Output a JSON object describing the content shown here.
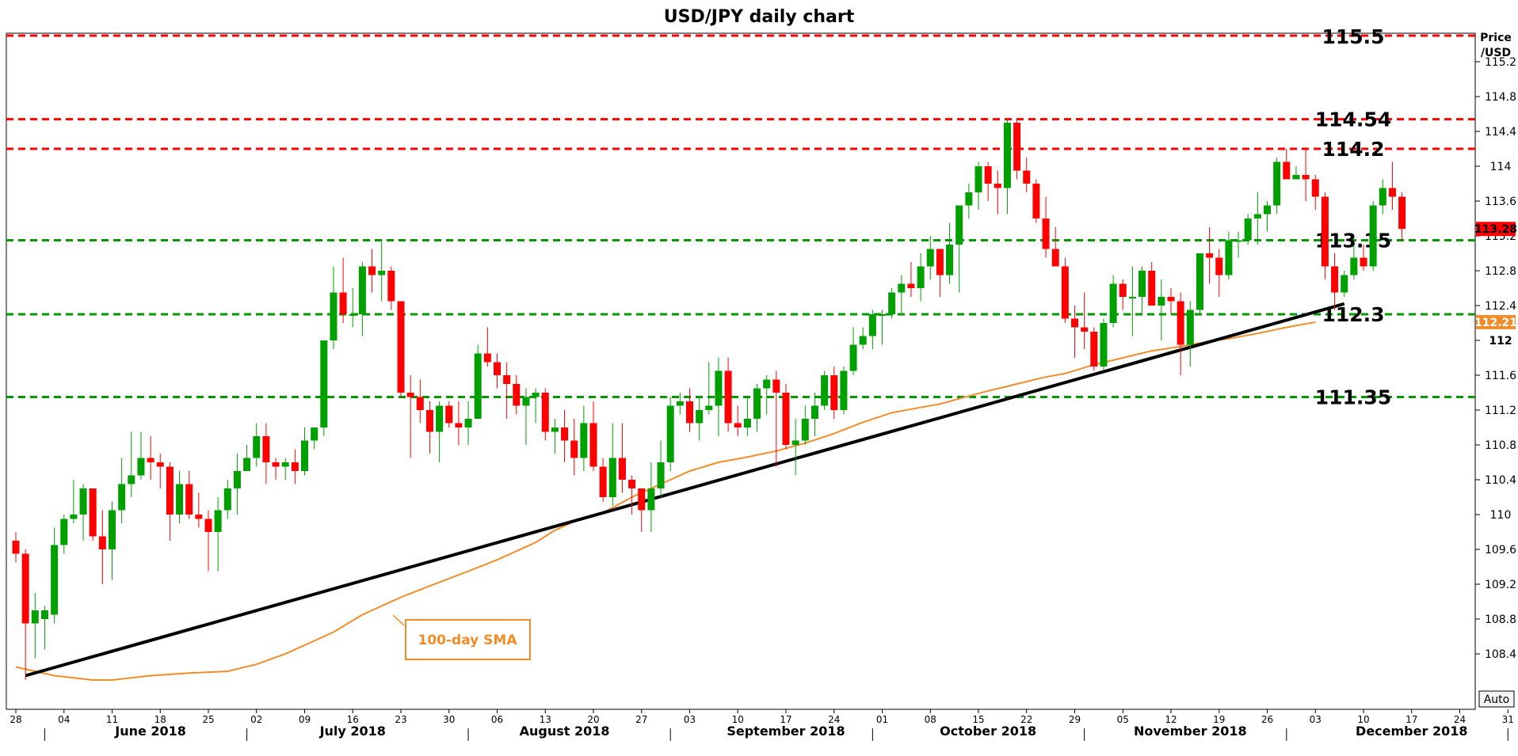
{
  "chart_data": {
    "type": "candlestick",
    "title": "USD/JPY daily chart",
    "ylabel": "Price /USD",
    "ylabel_lines": [
      "Price",
      "/USD"
    ],
    "ylim": [
      108.0,
      115.5
    ],
    "yticks": [
      "115.2",
      "114.8",
      "114.4",
      "114",
      "113.6",
      "113.2",
      "112.8",
      "112.4",
      "112",
      "111.6",
      "111.2",
      "110.8",
      "110.4",
      "110",
      "109.6",
      "109.2",
      "108.8",
      "108.4"
    ],
    "ytick_values": [
      115.2,
      114.8,
      114.4,
      114.0,
      113.6,
      113.2,
      112.8,
      112.4,
      112.0,
      111.6,
      111.2,
      110.8,
      110.4,
      110.0,
      109.6,
      109.2,
      108.8,
      108.4
    ],
    "ytick_bold": "112",
    "auto_button": "Auto",
    "x_day_ticks": [
      {
        "label": "28",
        "d": 0
      },
      {
        "label": "04",
        "d": 5
      },
      {
        "label": "11",
        "d": 10
      },
      {
        "label": "18",
        "d": 15
      },
      {
        "label": "25",
        "d": 20
      },
      {
        "label": "02",
        "d": 25
      },
      {
        "label": "09",
        "d": 30
      },
      {
        "label": "16",
        "d": 35
      },
      {
        "label": "23",
        "d": 40
      },
      {
        "label": "30",
        "d": 45
      },
      {
        "label": "06",
        "d": 50
      },
      {
        "label": "13",
        "d": 55
      },
      {
        "label": "20",
        "d": 60
      },
      {
        "label": "27",
        "d": 65
      },
      {
        "label": "03",
        "d": 70
      },
      {
        "label": "10",
        "d": 75
      },
      {
        "label": "17",
        "d": 80
      },
      {
        "label": "24",
        "d": 85
      },
      {
        "label": "01",
        "d": 90
      },
      {
        "label": "08",
        "d": 95
      },
      {
        "label": "15",
        "d": 100
      },
      {
        "label": "22",
        "d": 105
      },
      {
        "label": "29",
        "d": 110
      },
      {
        "label": "05",
        "d": 115
      },
      {
        "label": "12",
        "d": 120
      },
      {
        "label": "19",
        "d": 125
      },
      {
        "label": "26",
        "d": 130
      },
      {
        "label": "03",
        "d": 135
      },
      {
        "label": "10",
        "d": 140
      },
      {
        "label": "17",
        "d": 145
      },
      {
        "label": "24",
        "d": 150
      },
      {
        "label": "31",
        "d": 155
      }
    ],
    "months": [
      {
        "label": "June 2018",
        "d": 14
      },
      {
        "label": "July 2018",
        "d": 35
      },
      {
        "label": "August 2018",
        "d": 57
      },
      {
        "label": "September 2018",
        "d": 80
      },
      {
        "label": "October 2018",
        "d": 101
      },
      {
        "label": "November 2018",
        "d": 122
      },
      {
        "label": "December 2018",
        "d": 145
      }
    ],
    "month_separators": [
      3,
      24,
      47,
      68,
      89,
      111,
      132,
      155
    ],
    "horizontal_levels": [
      {
        "value": 115.5,
        "label": "115.5",
        "color": "#ff0000"
      },
      {
        "value": 114.54,
        "label": "114.54",
        "color": "#ff0000"
      },
      {
        "value": 114.2,
        "label": "114.2",
        "color": "#ff0000"
      },
      {
        "value": 113.15,
        "label": "113.15",
        "color": "#009900"
      },
      {
        "value": 112.3,
        "label": "112.3",
        "color": "#009900"
      },
      {
        "value": 111.35,
        "label": "111.35",
        "color": "#009900"
      }
    ],
    "trendline": {
      "from": {
        "d": 1,
        "value": 108.15
      },
      "to": {
        "d": 138,
        "value": 112.42
      },
      "color": "#000000"
    },
    "sma": {
      "name": "100-day SMA",
      "color": "#f28c28",
      "points": [
        [
          0,
          108.25
        ],
        [
          4,
          108.15
        ],
        [
          8,
          108.1
        ],
        [
          10,
          108.1
        ],
        [
          14,
          108.15
        ],
        [
          18,
          108.18
        ],
        [
          22,
          108.2
        ],
        [
          25,
          108.28
        ],
        [
          28,
          108.4
        ],
        [
          30,
          108.5
        ],
        [
          33,
          108.65
        ],
        [
          36,
          108.85
        ],
        [
          40,
          109.05
        ],
        [
          43,
          109.18
        ],
        [
          47,
          109.35
        ],
        [
          50,
          109.48
        ],
        [
          54,
          109.68
        ],
        [
          56,
          109.82
        ],
        [
          58,
          109.92
        ],
        [
          61,
          110.02
        ],
        [
          64,
          110.2
        ],
        [
          67,
          110.35
        ],
        [
          70,
          110.5
        ],
        [
          73,
          110.6
        ],
        [
          76,
          110.66
        ],
        [
          79,
          110.73
        ],
        [
          82,
          110.82
        ],
        [
          85,
          110.93
        ],
        [
          88,
          111.06
        ],
        [
          91,
          111.17
        ],
        [
          94,
          111.23
        ],
        [
          96,
          111.27
        ],
        [
          98,
          111.33
        ],
        [
          101,
          111.42
        ],
        [
          104,
          111.5
        ],
        [
          107,
          111.58
        ],
        [
          109,
          111.62
        ],
        [
          112,
          111.72
        ],
        [
          115,
          111.8
        ],
        [
          118,
          111.88
        ],
        [
          121,
          111.93
        ],
        [
          123,
          111.97
        ],
        [
          126,
          112.02
        ],
        [
          129,
          112.08
        ],
        [
          132,
          112.15
        ],
        [
          135,
          112.21
        ]
      ]
    },
    "current_price_tags": [
      {
        "label": "113.28",
        "value": 113.28,
        "bg": "#ff0000",
        "fg": "#000000"
      },
      {
        "label": "112.21",
        "value": 112.21,
        "bg": "#f28c28",
        "fg": "#ffffff"
      }
    ],
    "candles": [
      [
        0,
        109.7,
        109.8,
        109.45,
        109.55
      ],
      [
        1,
        109.55,
        109.6,
        108.1,
        108.75
      ],
      [
        2,
        108.75,
        109.1,
        108.35,
        108.9
      ],
      [
        3,
        108.8,
        108.95,
        108.45,
        108.9
      ],
      [
        4,
        108.85,
        109.85,
        108.75,
        109.65
      ],
      [
        5,
        109.65,
        110.0,
        109.55,
        109.95
      ],
      [
        6,
        109.95,
        110.4,
        109.9,
        110.0
      ],
      [
        7,
        110.0,
        110.35,
        109.7,
        110.3
      ],
      [
        8,
        110.3,
        110.3,
        109.7,
        109.75
      ],
      [
        9,
        109.75,
        110.05,
        109.2,
        109.6
      ],
      [
        10,
        109.6,
        110.15,
        109.25,
        110.05
      ],
      [
        11,
        110.05,
        110.65,
        109.9,
        110.35
      ],
      [
        12,
        110.35,
        110.95,
        110.2,
        110.45
      ],
      [
        13,
        110.45,
        110.95,
        110.4,
        110.65
      ],
      [
        14,
        110.65,
        110.9,
        110.4,
        110.6
      ],
      [
        15,
        110.6,
        110.7,
        110.3,
        110.55
      ],
      [
        16,
        110.55,
        110.6,
        109.7,
        110.0
      ],
      [
        17,
        110.0,
        110.5,
        109.9,
        110.35
      ],
      [
        18,
        110.35,
        110.5,
        109.95,
        110.0
      ],
      [
        19,
        110.0,
        110.25,
        109.85,
        109.95
      ],
      [
        20,
        109.95,
        110.05,
        109.35,
        109.8
      ],
      [
        21,
        109.8,
        110.2,
        109.35,
        110.05
      ],
      [
        22,
        110.05,
        110.4,
        109.95,
        110.3
      ],
      [
        23,
        110.3,
        110.7,
        110.0,
        110.5
      ],
      [
        24,
        110.5,
        110.8,
        110.5,
        110.65
      ],
      [
        25,
        110.65,
        111.05,
        110.55,
        110.9
      ],
      [
        26,
        110.9,
        111.05,
        110.35,
        110.6
      ],
      [
        27,
        110.6,
        110.65,
        110.4,
        110.55
      ],
      [
        28,
        110.55,
        110.65,
        110.4,
        110.6
      ],
      [
        29,
        110.6,
        110.75,
        110.35,
        110.5
      ],
      [
        30,
        110.5,
        111.0,
        110.45,
        110.85
      ],
      [
        31,
        110.85,
        111.0,
        110.75,
        111.0
      ],
      [
        32,
        111.0,
        112.0,
        110.9,
        112.0
      ],
      [
        33,
        112.0,
        112.85,
        111.9,
        112.55
      ],
      [
        34,
        112.55,
        112.95,
        112.2,
        112.3
      ],
      [
        35,
        112.3,
        112.6,
        112.15,
        112.3
      ],
      [
        36,
        112.3,
        112.9,
        112.05,
        112.85
      ],
      [
        37,
        112.85,
        113.05,
        112.55,
        112.75
      ],
      [
        38,
        112.75,
        113.15,
        112.45,
        112.8
      ],
      [
        39,
        112.8,
        112.85,
        112.35,
        112.45
      ],
      [
        40,
        112.45,
        112.45,
        111.35,
        111.4
      ],
      [
        41,
        111.4,
        111.6,
        110.65,
        111.35
      ],
      [
        42,
        111.35,
        111.55,
        111.05,
        111.2
      ],
      [
        43,
        111.2,
        111.3,
        110.7,
        110.95
      ],
      [
        44,
        110.95,
        111.3,
        110.6,
        111.25
      ],
      [
        45,
        111.25,
        111.3,
        111.0,
        111.05
      ],
      [
        46,
        111.05,
        111.3,
        110.8,
        111.0
      ],
      [
        47,
        111.0,
        111.3,
        110.8,
        111.1
      ],
      [
        48,
        111.1,
        111.95,
        111.1,
        111.85
      ],
      [
        49,
        111.85,
        112.15,
        111.7,
        111.75
      ],
      [
        50,
        111.75,
        111.85,
        111.45,
        111.6
      ],
      [
        51,
        111.6,
        111.75,
        111.1,
        111.5
      ],
      [
        52,
        111.5,
        111.6,
        111.15,
        111.25
      ],
      [
        53,
        111.25,
        111.45,
        110.8,
        111.35
      ],
      [
        54,
        111.35,
        111.45,
        111.05,
        111.4
      ],
      [
        55,
        111.4,
        111.45,
        110.85,
        110.95
      ],
      [
        56,
        110.95,
        111.1,
        110.7,
        111.0
      ],
      [
        57,
        111.0,
        111.2,
        110.6,
        110.85
      ],
      [
        58,
        110.85,
        111.1,
        110.45,
        110.65
      ],
      [
        59,
        110.65,
        111.25,
        110.5,
        111.05
      ],
      [
        60,
        111.05,
        111.3,
        110.5,
        110.55
      ],
      [
        61,
        110.55,
        110.65,
        110.15,
        110.2
      ],
      [
        62,
        110.2,
        111.05,
        110.1,
        110.65
      ],
      [
        63,
        110.65,
        111.05,
        110.25,
        110.4
      ],
      [
        64,
        110.4,
        110.45,
        110.0,
        110.3
      ],
      [
        65,
        110.3,
        110.3,
        109.8,
        110.05
      ],
      [
        66,
        110.05,
        110.6,
        109.8,
        110.3
      ],
      [
        67,
        110.3,
        110.85,
        110.2,
        110.6
      ],
      [
        68,
        110.6,
        111.35,
        110.5,
        111.25
      ],
      [
        69,
        111.25,
        111.4,
        111.15,
        111.3
      ],
      [
        70,
        111.3,
        111.45,
        110.95,
        111.05
      ],
      [
        71,
        111.05,
        111.35,
        110.85,
        111.2
      ],
      [
        72,
        111.2,
        111.75,
        111.15,
        111.25
      ],
      [
        73,
        111.25,
        111.8,
        110.9,
        111.65
      ],
      [
        74,
        111.65,
        111.8,
        110.95,
        111.05
      ],
      [
        75,
        111.05,
        111.25,
        110.9,
        111.0
      ],
      [
        76,
        111.0,
        111.35,
        110.9,
        111.1
      ],
      [
        77,
        111.1,
        111.5,
        110.95,
        111.45
      ],
      [
        78,
        111.45,
        111.6,
        111.15,
        111.55
      ],
      [
        79,
        111.55,
        111.65,
        110.55,
        111.4
      ],
      [
        80,
        111.4,
        111.5,
        110.75,
        110.8
      ],
      [
        81,
        110.8,
        111.1,
        110.45,
        110.85
      ],
      [
        82,
        110.85,
        111.25,
        110.8,
        111.1
      ],
      [
        83,
        111.1,
        111.4,
        110.9,
        111.25
      ],
      [
        84,
        111.25,
        111.65,
        111.2,
        111.6
      ],
      [
        85,
        111.6,
        111.7,
        111.1,
        111.2
      ],
      [
        86,
        111.2,
        111.7,
        111.15,
        111.65
      ],
      [
        87,
        111.65,
        112.15,
        111.6,
        111.95
      ],
      [
        88,
        111.95,
        112.15,
        111.9,
        112.05
      ],
      [
        89,
        112.05,
        112.35,
        111.9,
        112.3
      ],
      [
        90,
        112.3,
        112.35,
        111.95,
        112.3
      ],
      [
        91,
        112.3,
        112.6,
        112.25,
        112.55
      ],
      [
        92,
        112.55,
        112.75,
        112.3,
        112.65
      ],
      [
        93,
        112.65,
        112.9,
        112.5,
        112.6
      ],
      [
        94,
        112.6,
        113.0,
        112.45,
        112.85
      ],
      [
        95,
        112.85,
        113.2,
        112.7,
        113.05
      ],
      [
        96,
        113.05,
        113.05,
        112.5,
        112.75
      ],
      [
        97,
        112.75,
        113.35,
        112.65,
        113.1
      ],
      [
        98,
        113.1,
        113.55,
        112.55,
        113.55
      ],
      [
        99,
        113.55,
        113.8,
        113.4,
        113.7
      ],
      [
        100,
        113.7,
        114.05,
        113.5,
        114.0
      ],
      [
        101,
        114.0,
        114.05,
        113.6,
        113.8
      ],
      [
        102,
        113.8,
        113.95,
        113.45,
        113.75
      ],
      [
        103,
        113.75,
        114.54,
        113.45,
        114.5
      ],
      [
        104,
        114.5,
        114.54,
        113.85,
        113.95
      ],
      [
        105,
        113.95,
        114.1,
        113.7,
        113.8
      ],
      [
        106,
        113.8,
        113.85,
        113.35,
        113.4
      ],
      [
        107,
        113.4,
        113.65,
        112.95,
        113.05
      ],
      [
        108,
        113.05,
        113.3,
        112.85,
        112.85
      ],
      [
        109,
        112.85,
        112.95,
        112.2,
        112.25
      ],
      [
        110,
        112.25,
        112.4,
        111.8,
        112.15
      ],
      [
        111,
        112.15,
        112.55,
        111.9,
        112.1
      ],
      [
        112,
        112.1,
        112.15,
        111.65,
        111.7
      ],
      [
        113,
        111.7,
        112.25,
        111.65,
        112.2
      ],
      [
        114,
        112.2,
        112.75,
        112.15,
        112.65
      ],
      [
        115,
        112.65,
        112.7,
        112.35,
        112.5
      ],
      [
        116,
        112.5,
        112.85,
        112.05,
        112.5
      ],
      [
        117,
        112.5,
        112.85,
        112.3,
        112.8
      ],
      [
        118,
        112.8,
        112.9,
        112.4,
        112.4
      ],
      [
        119,
        112.4,
        112.7,
        112.0,
        112.5
      ],
      [
        120,
        112.5,
        112.6,
        112.3,
        112.45
      ],
      [
        121,
        112.45,
        112.55,
        111.6,
        111.95
      ],
      [
        122,
        111.95,
        112.45,
        111.7,
        112.35
      ],
      [
        123,
        112.35,
        113.0,
        112.3,
        113.0
      ],
      [
        124,
        113.0,
        113.3,
        112.65,
        112.95
      ],
      [
        125,
        112.95,
        113.05,
        112.5,
        112.75
      ],
      [
        126,
        112.75,
        113.25,
        112.7,
        113.15
      ],
      [
        127,
        113.15,
        113.25,
        112.95,
        113.15
      ],
      [
        128,
        113.15,
        113.45,
        113.1,
        113.4
      ],
      [
        129,
        113.4,
        113.7,
        113.1,
        113.45
      ],
      [
        130,
        113.45,
        113.6,
        113.25,
        113.55
      ],
      [
        131,
        113.55,
        114.1,
        113.45,
        114.05
      ],
      [
        132,
        114.05,
        114.2,
        113.9,
        113.85
      ],
      [
        133,
        113.85,
        114.0,
        113.85,
        113.9
      ],
      [
        134,
        113.9,
        114.2,
        113.6,
        113.85
      ],
      [
        135,
        113.85,
        113.9,
        113.5,
        113.65
      ],
      [
        136,
        113.65,
        113.7,
        112.7,
        112.85
      ],
      [
        137,
        112.85,
        113.0,
        112.35,
        112.55
      ],
      [
        138,
        112.55,
        112.8,
        112.5,
        112.75
      ],
      [
        139,
        112.75,
        113.1,
        112.7,
        112.95
      ],
      [
        140,
        112.95,
        113.1,
        112.8,
        112.85
      ],
      [
        141,
        112.85,
        113.6,
        112.8,
        113.55
      ],
      [
        142,
        113.55,
        113.85,
        113.45,
        113.75
      ],
      [
        143,
        113.75,
        114.05,
        113.5,
        113.65
      ],
      [
        144,
        113.65,
        113.7,
        113.15,
        113.28
      ]
    ],
    "grid": false,
    "legend": "none"
  }
}
